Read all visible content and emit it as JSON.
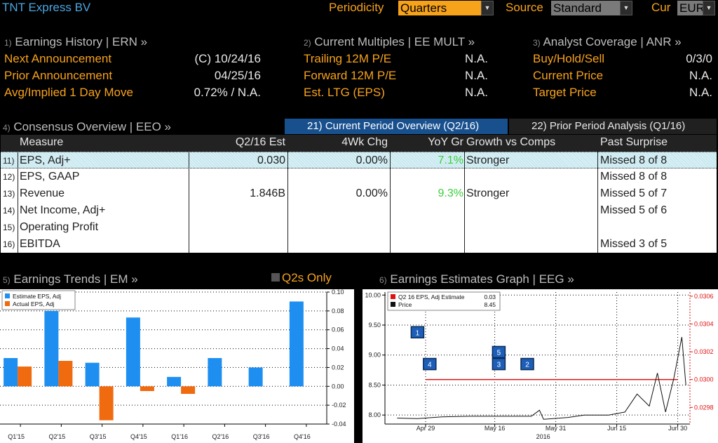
{
  "header": {
    "company": "TNT Express BV",
    "periodicity_label": "Periodicity",
    "periodicity_value": "Quarters",
    "source_label": "Source",
    "source_value": "Standard",
    "cur_label": "Cur",
    "cur_value": "EUR"
  },
  "earnings_history": {
    "num": "1)",
    "title": "Earnings History | ERN »",
    "rows": [
      {
        "label": "Next Announcement",
        "value": "(C)  10/24/16"
      },
      {
        "label": "Prior Announcement",
        "value": "04/25/16"
      },
      {
        "label": "Avg/Implied 1 Day Move",
        "value": "0.72% / N.A."
      }
    ]
  },
  "current_multiples": {
    "num": "2)",
    "title": "Current Multiples | EE MULT »",
    "rows": [
      {
        "label": "Trailing 12M P/E",
        "value": "N.A."
      },
      {
        "label": "Forward 12M P/E",
        "value": "N.A."
      },
      {
        "label": "Est. LTG (EPS)",
        "value": "N.A."
      }
    ]
  },
  "analyst_coverage": {
    "num": "3)",
    "title": "Analyst Coverage | ANR »",
    "rows": [
      {
        "label": "Buy/Hold/Sell",
        "value": "0/3/0"
      },
      {
        "label": "Current Price",
        "value": "N.A."
      },
      {
        "label": "Target Price",
        "value": "N.A."
      }
    ]
  },
  "consensus": {
    "num": "4)",
    "title": "Consensus Overview | EEO »",
    "tab_current": "21) Current Period Overview (Q2/16)",
    "tab_prior": "22) Prior Period Analysis (Q1/16)",
    "columns": [
      "Measure",
      "Q2/16 Est",
      "4Wk Chg",
      "YoY Gr",
      "Growth vs Comps",
      "Past Surprise"
    ],
    "rows": [
      {
        "num": "11)",
        "measure": "EPS, Adj+",
        "est": "0.030",
        "chg": "0.00%",
        "yoy": "7.1%",
        "growth": "Stronger",
        "surprise": "Missed 8 of 8"
      },
      {
        "num": "12)",
        "measure": "EPS, GAAP",
        "est": "",
        "chg": "",
        "yoy": "",
        "growth": "",
        "surprise": "Missed 8 of 8"
      },
      {
        "num": "13)",
        "measure": "Revenue",
        "est": "1.846B",
        "chg": "0.00%",
        "yoy": "9.3%",
        "growth": "Stronger",
        "surprise": "Missed 5 of 7"
      },
      {
        "num": "14)",
        "measure": "Net Income, Adj+",
        "est": "",
        "chg": "",
        "yoy": "",
        "growth": "",
        "surprise": "Missed 5 of 6"
      },
      {
        "num": "15)",
        "measure": "Operating Profit",
        "est": "",
        "chg": "",
        "yoy": "",
        "growth": "",
        "surprise": ""
      },
      {
        "num": "16)",
        "measure": "EBITDA",
        "est": "",
        "chg": "",
        "yoy": "",
        "growth": "",
        "surprise": "Missed 3 of 5"
      }
    ]
  },
  "earnings_trends": {
    "num": "5)",
    "title": "Earnings Trends | EM »",
    "toggle_label": "Q2s Only"
  },
  "earnings_graph": {
    "num": "6)",
    "title": "Earnings Estimates Graph | EEG »"
  },
  "colors": {
    "amber": "#f7a21b",
    "blue_bar": "#1e8ff0",
    "orange_bar": "#f06a10",
    "tab_active": "#18508e",
    "title_blue": "#4aa6e0",
    "red_series": "#e01010"
  },
  "chart_data": [
    {
      "type": "bar",
      "categories": [
        "Q1'15",
        "Q2'15",
        "Q3'15",
        "Q4'15",
        "Q1'16",
        "Q2'16",
        "Q3'16",
        "Q4'16"
      ],
      "series": [
        {
          "name": "Estimate EPS, Adj",
          "values": [
            0.03,
            0.08,
            0.025,
            0.073,
            0.01,
            0.03,
            0.02,
            0.09
          ]
        },
        {
          "name": "Actual EPS, Adj",
          "values": [
            0.021,
            0.027,
            -0.036,
            -0.005,
            -0.008,
            null,
            null,
            null
          ]
        }
      ],
      "y_ticks": [
        "0.10",
        "0.08",
        "0.06",
        "0.04",
        "0.02",
        "0.00",
        "-0.02",
        "-0.04"
      ],
      "ylim": [
        -0.04,
        0.1
      ],
      "legend": "top-left",
      "grid": true
    },
    {
      "type": "line",
      "x_ticks": [
        "Apr 29",
        "May 16",
        "May 31",
        "Jun 15",
        "Jun 30"
      ],
      "x_year_label": "2016",
      "left_ticks": [
        "10.00",
        "9.50",
        "9.00",
        "8.50",
        "8.00"
      ],
      "right_ticks": [
        "0.0306",
        "0.0304",
        "0.0302",
        "0.0300",
        "0.0298"
      ],
      "left_ylim": [
        7.85,
        10.05
      ],
      "right_ylim": [
        0.02968,
        0.03063
      ],
      "legend": [
        {
          "name": "Q2 16 EPS, Adj Estimate",
          "value": "0.03"
        },
        {
          "name": "Price",
          "value": "8.45"
        }
      ],
      "series": [
        {
          "name": "Q2 16 EPS, Adj Estimate",
          "axis": "right",
          "x": [
            "Apr 29",
            "Jun 30"
          ],
          "y": [
            0.03,
            0.03
          ]
        },
        {
          "name": "Price",
          "axis": "left",
          "points": [
            [
              "Apr 22",
              7.95
            ],
            [
              "Apr 27",
              7.94
            ],
            [
              "May 3",
              7.97
            ],
            [
              "May 10",
              7.98
            ],
            [
              "May 17",
              7.98
            ],
            [
              "May 25",
              7.98
            ],
            [
              "May 27",
              8.08
            ],
            [
              "May 28",
              7.93
            ],
            [
              "Jun 3",
              7.96
            ],
            [
              "Jun 7",
              8.0
            ],
            [
              "Jun 13",
              8.0
            ],
            [
              "Jun 17",
              8.05
            ],
            [
              "Jun 20",
              8.35
            ],
            [
              "Jun 23",
              8.15
            ],
            [
              "Jun 25",
              8.7
            ],
            [
              "Jun 27",
              8.05
            ],
            [
              "Jun 29",
              8.6
            ],
            [
              "Jul 1",
              9.3
            ],
            [
              "Jul 2",
              8.5
            ]
          ]
        }
      ],
      "event_markers": [
        {
          "label": "1",
          "date": "Apr 27",
          "value": 9.38
        },
        {
          "label": "4",
          "date": "Apr 30",
          "value": 8.85
        },
        {
          "label": "5",
          "date": "May 17",
          "value": 9.05
        },
        {
          "label": "3",
          "date": "May 17",
          "value": 8.85
        },
        {
          "label": "2",
          "date": "May 24",
          "value": 8.85
        }
      ]
    }
  ]
}
